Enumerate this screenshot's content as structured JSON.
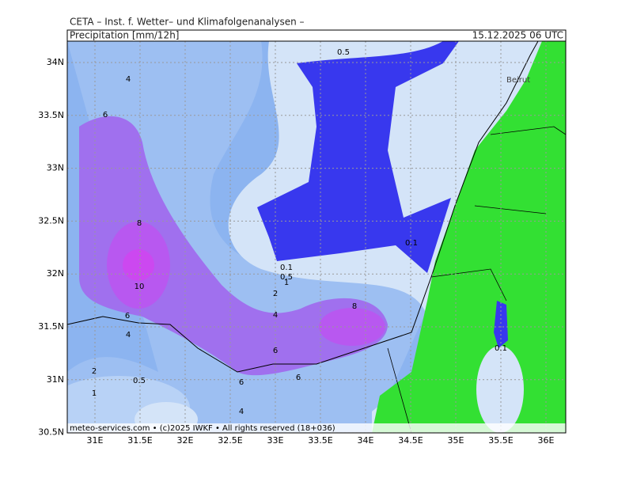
{
  "header": {
    "model": "CETA – Inst. f. Wetter– und Klimafolgenanalysen –",
    "title": "Precipitation [mm/12h]",
    "date": "15.12.2025 06 UTC"
  },
  "axes": {
    "lon_labels": [
      "31E",
      "31.5E",
      "32E",
      "32.5E",
      "33E",
      "33.5E",
      "34E",
      "34.5E",
      "35E",
      "35.5E",
      "36E"
    ],
    "lat_labels": [
      "34N",
      "33.5N",
      "33N",
      "32.5N",
      "32N",
      "31.5N",
      "31N",
      "30.5N"
    ]
  },
  "contour_labels": [
    "0.5",
    "4",
    "6",
    "8",
    "10",
    "0.1",
    "0.5",
    "1",
    "0.1",
    "2",
    "4",
    "8",
    "6",
    "4",
    "6",
    "2",
    "1",
    "0.5",
    "6",
    "6",
    "4",
    "0.1"
  ],
  "places": [
    "Beirut"
  ],
  "footer": "meteo-services.com • (c)2025 IWKF • All rights reserved (18+036)"
}
